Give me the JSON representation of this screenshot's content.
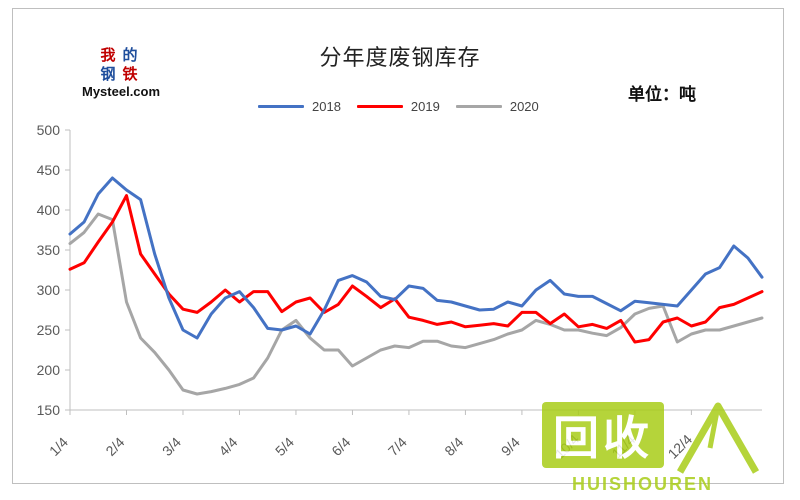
{
  "header": {
    "title": "分年度废钢库存",
    "unit": "单位：吨"
  },
  "logo": {
    "chars": [
      "我",
      "的",
      "钢",
      "铁"
    ],
    "text": "Mysteel.com"
  },
  "watermark": {
    "cn": "回收",
    "en": "HUISHOUREN"
  },
  "colors": {
    "s2018": "#4472c4",
    "s2019": "#ff0000",
    "s2020": "#a6a6a6",
    "logo_red": "#c00000",
    "logo_blue": "#1f4e9c",
    "watermark": "#a9cd18"
  },
  "chart_data": {
    "type": "line",
    "title": "分年度废钢库存",
    "xlabel": "",
    "ylabel": "",
    "unit_label": "单位：吨",
    "ylim": [
      150,
      500
    ],
    "yticks": [
      150,
      200,
      250,
      300,
      350,
      400,
      450,
      500
    ],
    "xticks": [
      "1/4",
      "2/4",
      "3/4",
      "4/4",
      "5/4",
      "6/4",
      "7/4",
      "8/4",
      "9/4",
      "10/4",
      "11/4",
      "12/4"
    ],
    "legend_position": "top",
    "grid": false,
    "series": [
      {
        "name": "2018",
        "x": [
          0,
          0.25,
          0.5,
          0.75,
          1.0,
          1.25,
          1.5,
          1.75,
          2.0,
          2.25,
          2.5,
          2.75,
          3.0,
          3.25,
          3.5,
          3.75,
          4.0,
          4.25,
          4.5,
          4.75,
          5.0,
          5.25,
          5.5,
          5.75,
          6.0,
          6.25,
          6.5,
          6.75,
          7.0,
          7.25,
          7.5,
          7.75,
          8.0,
          8.25,
          8.5,
          8.75,
          9.0,
          9.25,
          9.5,
          9.75,
          10.0,
          10.25,
          10.5,
          10.75,
          11.0,
          11.25,
          11.5,
          11.75,
          12.0,
          12.25
        ],
        "values": [
          370,
          385,
          420,
          440,
          425,
          413,
          345,
          290,
          250,
          240,
          270,
          290,
          298,
          278,
          252,
          250,
          255,
          245,
          275,
          312,
          318,
          310,
          292,
          288,
          305,
          302,
          287,
          285,
          280,
          275,
          276,
          285,
          280,
          300,
          312,
          295,
          292,
          292,
          283,
          274,
          286,
          284,
          282,
          280,
          300,
          320,
          328,
          355,
          340,
          316
        ]
      },
      {
        "name": "2019",
        "x": [
          0,
          0.25,
          0.5,
          0.75,
          1.0,
          1.25,
          1.5,
          1.75,
          2.0,
          2.25,
          2.5,
          2.75,
          3.0,
          3.25,
          3.5,
          3.75,
          4.0,
          4.25,
          4.5,
          4.75,
          5.0,
          5.25,
          5.5,
          5.75,
          6.0,
          6.25,
          6.5,
          6.75,
          7.0,
          7.25,
          7.5,
          7.75,
          8.0,
          8.25,
          8.5,
          8.75,
          9.0,
          9.25,
          9.5,
          9.75,
          10.0,
          10.25,
          10.5,
          10.75,
          11.0,
          11.25,
          11.5,
          11.75,
          12.0,
          12.25
        ],
        "values": [
          326,
          334,
          360,
          385,
          418,
          345,
          320,
          295,
          276,
          272,
          285,
          300,
          285,
          298,
          298,
          273,
          285,
          290,
          272,
          282,
          305,
          292,
          278,
          289,
          266,
          262,
          257,
          260,
          254,
          256,
          258,
          255,
          272,
          272,
          258,
          270,
          254,
          257,
          252,
          262,
          235,
          238,
          260,
          265,
          255,
          260,
          278,
          282,
          290,
          298
        ]
      },
      {
        "name": "2020",
        "x": [
          0,
          0.25,
          0.5,
          0.75,
          1.0,
          1.25,
          1.5,
          1.75,
          2.0,
          2.25,
          2.5,
          2.75,
          3.0,
          3.25,
          3.5,
          3.75,
          4.0,
          4.25,
          4.5,
          4.75,
          5.0,
          5.25,
          5.5,
          5.75,
          6.0,
          6.25,
          6.5,
          6.75,
          7.0,
          7.25,
          7.5,
          7.75,
          8.0,
          8.25,
          8.5,
          8.75,
          9.0,
          9.25,
          9.5,
          9.75,
          10.0,
          10.25,
          10.5,
          10.75,
          11.0,
          11.25,
          11.5,
          11.75,
          12.0,
          12.25
        ],
        "values": [
          358,
          372,
          395,
          388,
          285,
          240,
          222,
          200,
          175,
          170,
          173,
          177,
          182,
          190,
          215,
          250,
          262,
          240,
          225,
          225,
          205,
          215,
          225,
          230,
          228,
          236,
          236,
          230,
          228,
          233,
          238,
          245,
          250,
          262,
          257,
          250,
          250,
          246,
          243,
          253,
          270,
          277,
          280,
          235,
          245,
          250,
          250,
          255,
          260,
          265
        ]
      }
    ]
  }
}
